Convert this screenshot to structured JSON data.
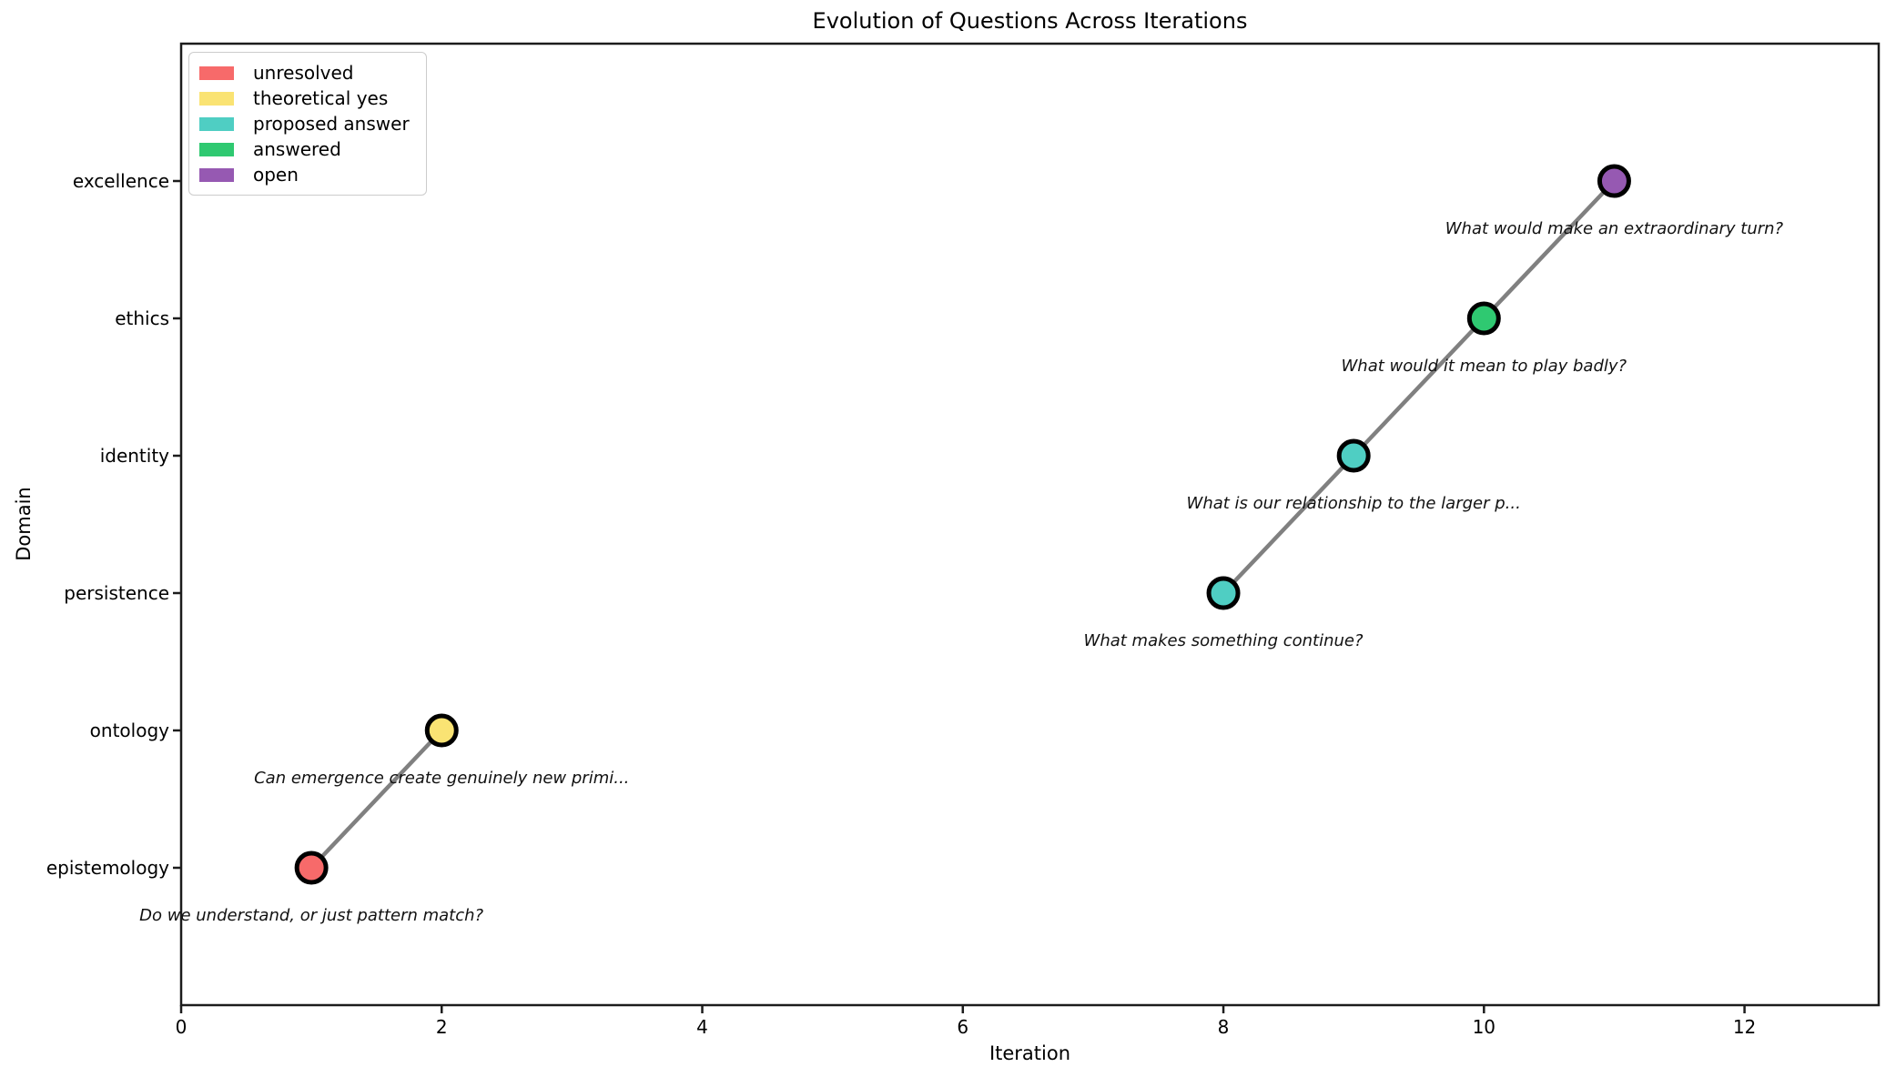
{
  "chart_data": {
    "type": "scatter",
    "title": "Evolution of Questions Across Iterations",
    "xlabel": "Iteration",
    "ylabel": "Domain",
    "x_ticks": [
      0,
      2,
      4,
      6,
      8,
      10,
      12
    ],
    "xlim": [
      0,
      13.03
    ],
    "domains": [
      "epistemology",
      "ontology",
      "persistence",
      "identity",
      "ethics",
      "excellence"
    ],
    "grid": false,
    "legend_position": "upper left",
    "legend": [
      {
        "label": "unresolved",
        "color": "#F76A6A"
      },
      {
        "label": "theoretical yes",
        "color": "#FAE373"
      },
      {
        "label": "proposed answer",
        "color": "#4FCEC3"
      },
      {
        "label": "answered",
        "color": "#2FC971"
      },
      {
        "label": "open",
        "color": "#9659B2"
      }
    ],
    "points": [
      {
        "iteration": 1,
        "domain": "epistemology",
        "status": "unresolved",
        "question": "Do we understand, or just pattern match?"
      },
      {
        "iteration": 2,
        "domain": "ontology",
        "status": "theoretical yes",
        "question": "Can emergence create genuinely new primi..."
      },
      {
        "iteration": 8,
        "domain": "persistence",
        "status": "proposed answer",
        "question": "What makes something continue?"
      },
      {
        "iteration": 9,
        "domain": "identity",
        "status": "proposed answer",
        "question": "What is our relationship to the larger p..."
      },
      {
        "iteration": 10,
        "domain": "ethics",
        "status": "answered",
        "question": "What would it mean to play badly?"
      },
      {
        "iteration": 11,
        "domain": "excellence",
        "status": "open",
        "question": "What would make an extraordinary turn?"
      }
    ],
    "segments": [
      [
        0,
        1
      ],
      [
        2,
        3
      ],
      [
        3,
        4
      ],
      [
        4,
        5
      ]
    ],
    "line_color": "#808080",
    "marker_edge_color": "#000000",
    "spine_color": "#1c1c1c"
  }
}
